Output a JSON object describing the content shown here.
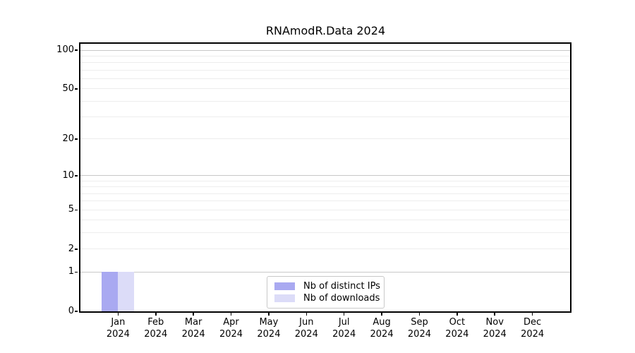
{
  "chart_data": {
    "type": "bar",
    "title": "RNAmodR.Data 2024",
    "categories": [
      "Jan 2024",
      "Feb 2024",
      "Mar 2024",
      "Apr 2024",
      "May 2024",
      "Jun 2024",
      "Jul 2024",
      "Aug 2024",
      "Sep 2024",
      "Oct 2024",
      "Nov 2024",
      "Dec 2024"
    ],
    "series": [
      {
        "name": "Nb of distinct IPs",
        "color": "#a9a9f1",
        "values": [
          1,
          0,
          0,
          0,
          0,
          0,
          0,
          0,
          0,
          0,
          0,
          0
        ]
      },
      {
        "name": "Nb of downloads",
        "color": "#dcdcf8",
        "values": [
          1,
          0,
          0,
          0,
          0,
          0,
          0,
          0,
          0,
          0,
          0,
          0
        ]
      }
    ],
    "xlabel": "",
    "ylabel": "",
    "y_scale": "log1p",
    "ylim": [
      0,
      112
    ],
    "y_ticks": [
      0,
      1,
      2,
      5,
      10,
      20,
      50,
      100
    ],
    "grid": true,
    "gridlines": {
      "major_values": [
        1,
        10,
        100
      ],
      "minor_values": [
        2,
        3,
        4,
        5,
        6,
        7,
        8,
        9,
        20,
        30,
        40,
        50,
        60,
        70,
        80,
        90
      ],
      "major_color": "#c8c8c8",
      "minor_color": "#ededed"
    },
    "axis_color": "#000000",
    "legend_position": "inside-bottom-center"
  }
}
